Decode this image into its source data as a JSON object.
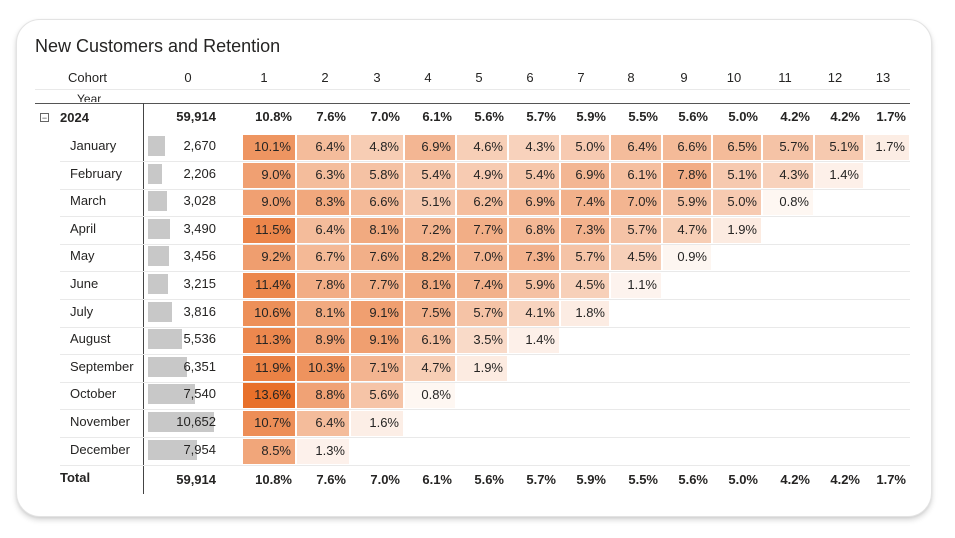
{
  "title": "New Customers and Retention",
  "headers": {
    "cohort": "Cohort",
    "year": "Year",
    "periods": [
      "0",
      "1",
      "2",
      "3",
      "4",
      "5",
      "6",
      "7",
      "8",
      "9",
      "10",
      "11",
      "12",
      "13"
    ]
  },
  "year_row": {
    "label": "2024",
    "expander": "⊟",
    "count": "59,914",
    "values": [
      "10.8%",
      "7.6%",
      "7.0%",
      "6.1%",
      "5.6%",
      "5.7%",
      "5.9%",
      "5.5%",
      "5.6%",
      "5.0%",
      "4.2%",
      "4.2%",
      "1.7%"
    ]
  },
  "total_row": {
    "label": "Total",
    "count": "59,914",
    "values": [
      "10.8%",
      "7.6%",
      "7.0%",
      "6.1%",
      "5.6%",
      "5.7%",
      "5.9%",
      "5.5%",
      "5.6%",
      "5.0%",
      "4.2%",
      "4.2%",
      "1.7%"
    ]
  },
  "chart_data": {
    "type": "table",
    "title": "New Customers and Retention",
    "columns": [
      "0",
      "1",
      "2",
      "3",
      "4",
      "5",
      "6",
      "7",
      "8",
      "9",
      "10",
      "11",
      "12",
      "13"
    ],
    "rows": [
      {
        "label": "January",
        "count": 2670,
        "count_text": "2,670",
        "values": [
          "10.1%",
          "6.4%",
          "4.8%",
          "6.9%",
          "4.6%",
          "4.3%",
          "5.0%",
          "6.4%",
          "6.6%",
          "6.5%",
          "5.7%",
          "5.1%",
          "1.7%"
        ]
      },
      {
        "label": "February",
        "count": 2206,
        "count_text": "2,206",
        "values": [
          "9.0%",
          "6.3%",
          "5.8%",
          "5.4%",
          "4.9%",
          "5.4%",
          "6.9%",
          "6.1%",
          "7.8%",
          "5.1%",
          "4.3%",
          "1.4%"
        ]
      },
      {
        "label": "March",
        "count": 3028,
        "count_text": "3,028",
        "values": [
          "9.0%",
          "8.3%",
          "6.6%",
          "5.1%",
          "6.2%",
          "6.9%",
          "7.4%",
          "7.0%",
          "5.9%",
          "5.0%",
          "0.8%"
        ]
      },
      {
        "label": "April",
        "count": 3490,
        "count_text": "3,490",
        "values": [
          "11.5%",
          "6.4%",
          "8.1%",
          "7.2%",
          "7.7%",
          "6.8%",
          "7.3%",
          "5.7%",
          "4.7%",
          "1.9%"
        ]
      },
      {
        "label": "May",
        "count": 3456,
        "count_text": "3,456",
        "values": [
          "9.2%",
          "6.7%",
          "7.6%",
          "8.2%",
          "7.0%",
          "7.3%",
          "5.7%",
          "4.5%",
          "0.9%"
        ]
      },
      {
        "label": "June",
        "count": 3215,
        "count_text": "3,215",
        "values": [
          "11.4%",
          "7.8%",
          "7.7%",
          "8.1%",
          "7.4%",
          "5.9%",
          "4.5%",
          "1.1%"
        ]
      },
      {
        "label": "July",
        "count": 3816,
        "count_text": "3,816",
        "values": [
          "10.6%",
          "8.1%",
          "9.1%",
          "7.5%",
          "5.7%",
          "4.1%",
          "1.8%"
        ]
      },
      {
        "label": "August",
        "count": 5536,
        "count_text": "5,536",
        "values": [
          "11.3%",
          "8.9%",
          "9.1%",
          "6.1%",
          "3.5%",
          "1.4%"
        ]
      },
      {
        "label": "September",
        "count": 6351,
        "count_text": "6,351",
        "values": [
          "11.9%",
          "10.3%",
          "7.1%",
          "4.7%",
          "1.9%"
        ]
      },
      {
        "label": "October",
        "count": 7540,
        "count_text": "7,540",
        "values": [
          "13.6%",
          "8.8%",
          "5.6%",
          "0.8%"
        ]
      },
      {
        "label": "November",
        "count": 10652,
        "count_text": "10,652",
        "values": [
          "10.7%",
          "6.4%",
          "1.6%"
        ]
      },
      {
        "label": "December",
        "count": 7954,
        "count_text": "7,954",
        "values": [
          "8.5%",
          "1.3%"
        ]
      }
    ],
    "bar_color": "#c8c8c8",
    "heat_color_low": "#ffffff",
    "heat_color_high": "#e8702a",
    "heat_max": 13.6
  }
}
